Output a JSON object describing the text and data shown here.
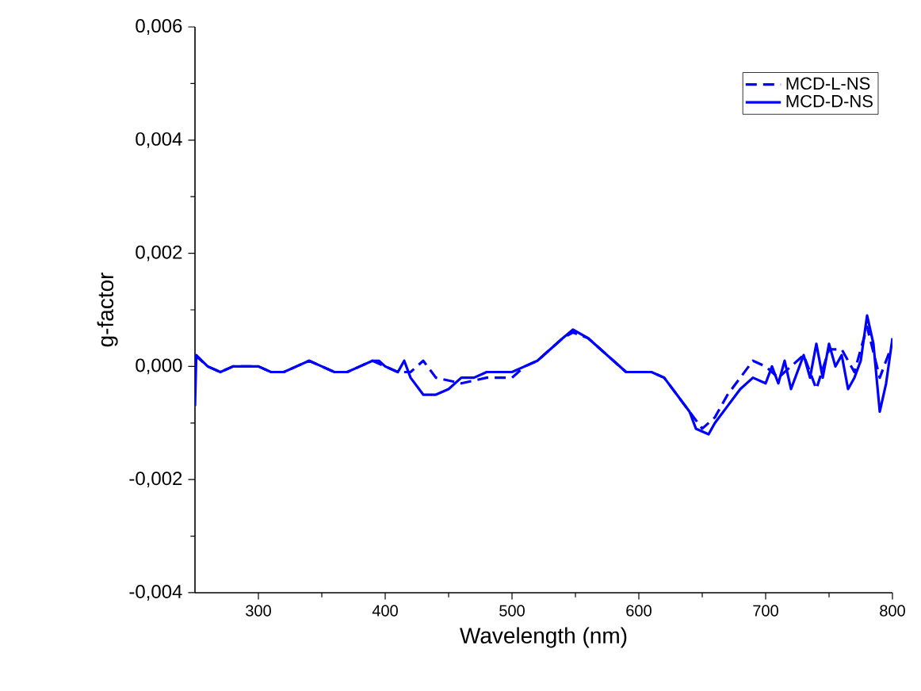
{
  "chart_data": {
    "type": "line",
    "xlabel": "Wavelength (nm)",
    "ylabel": "g-factor",
    "xlim": [
      250,
      800
    ],
    "xticks": [
      300,
      400,
      500,
      600,
      700,
      800
    ],
    "ylim": [
      -0.004,
      0.006
    ],
    "yticks": [
      {
        "value": -0.004,
        "label": "-0,004"
      },
      {
        "value": -0.002,
        "label": "-0,002"
      },
      {
        "value": 0,
        "label": "0,000"
      },
      {
        "value": 0.002,
        "label": "0,002"
      },
      {
        "value": 0.004,
        "label": "0,004"
      },
      {
        "value": 0.006,
        "label": "0,006"
      }
    ],
    "legend": "top right",
    "grid": false,
    "series": [
      {
        "name": "MCD-L-NS",
        "color": "#0000ff",
        "line_style": "dashed",
        "x": [
          250,
          260,
          270,
          280,
          290,
          300,
          310,
          320,
          330,
          340,
          350,
          360,
          370,
          380,
          390,
          400,
          410,
          420,
          430,
          440,
          460,
          480,
          500,
          510,
          520,
          530,
          540,
          548,
          560,
          570,
          580,
          590,
          600,
          610,
          620,
          630,
          640,
          650,
          660,
          670,
          680,
          690,
          700,
          710,
          720,
          730,
          740,
          750,
          760,
          770,
          780,
          790,
          800
        ],
        "values": [
          0.0002,
          0.0,
          -0.0001,
          0.0,
          0.0,
          0.0,
          -0.0001,
          -0.0001,
          0.0,
          0.0001,
          0.0,
          -0.0001,
          -0.0001,
          0.0,
          0.0001,
          0.0,
          -0.0001,
          -0.0001,
          0.0001,
          -0.0002,
          -0.0003,
          -0.0002,
          -0.0002,
          0.0,
          0.0001,
          0.0003,
          0.0005,
          0.0006,
          0.0005,
          0.0003,
          0.0001,
          -0.0001,
          -0.0001,
          -0.0001,
          -0.0002,
          -0.0005,
          -0.0008,
          -0.0011,
          -0.0009,
          -0.0005,
          -0.0002,
          0.0001,
          0.0,
          -0.0002,
          0.0,
          0.0002,
          -0.0004,
          0.0003,
          0.0003,
          -0.0001,
          0.0007,
          -0.0002,
          0.0004
        ]
      },
      {
        "name": "MCD-D-NS",
        "color": "#0000ff",
        "line_style": "solid",
        "x": [
          250,
          251,
          260,
          270,
          280,
          290,
          300,
          310,
          320,
          330,
          340,
          350,
          360,
          370,
          380,
          390,
          395,
          400,
          410,
          415,
          420,
          430,
          440,
          450,
          460,
          470,
          480,
          490,
          500,
          510,
          520,
          530,
          540,
          548,
          560,
          570,
          580,
          590,
          600,
          610,
          620,
          630,
          640,
          645,
          655,
          660,
          670,
          680,
          690,
          700,
          705,
          710,
          715,
          720,
          725,
          730,
          735,
          740,
          745,
          750,
          755,
          760,
          765,
          770,
          775,
          780,
          785,
          790,
          795,
          800
        ],
        "values": [
          -0.0007,
          0.0002,
          0.0,
          -0.0001,
          0.0,
          0.0,
          0.0,
          -0.0001,
          -0.0001,
          0.0,
          0.0001,
          0.0,
          -0.0001,
          -0.0001,
          0.0,
          0.0001,
          0.0001,
          0.0,
          -0.0001,
          0.0001,
          -0.0002,
          -0.0005,
          -0.0005,
          -0.0004,
          -0.0002,
          -0.0002,
          -0.0001,
          -0.0001,
          -0.0001,
          0.0,
          0.0001,
          0.0003,
          0.0005,
          0.00065,
          0.0005,
          0.0003,
          0.0001,
          -0.0001,
          -0.0001,
          -0.0001,
          -0.0002,
          -0.0005,
          -0.0008,
          -0.0011,
          -0.0012,
          -0.001,
          -0.0007,
          -0.0004,
          -0.0002,
          -0.0003,
          0.0,
          -0.0003,
          0.0001,
          -0.0004,
          -0.0001,
          0.0002,
          -0.0002,
          0.0004,
          -0.0002,
          0.0004,
          0.0,
          0.0002,
          -0.0004,
          -0.0002,
          0.0001,
          0.0009,
          0.0004,
          -0.0008,
          -0.0003,
          0.0005
        ]
      }
    ]
  }
}
